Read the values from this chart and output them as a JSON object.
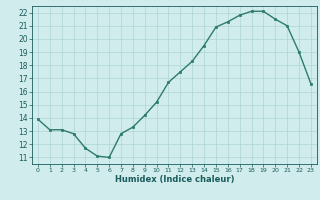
{
  "x": [
    0,
    1,
    2,
    3,
    4,
    5,
    6,
    7,
    8,
    9,
    10,
    11,
    12,
    13,
    14,
    15,
    16,
    17,
    18,
    19,
    20,
    21,
    22,
    23
  ],
  "y": [
    13.9,
    13.1,
    13.1,
    12.8,
    11.7,
    11.1,
    11.0,
    12.8,
    13.3,
    14.2,
    15.2,
    16.7,
    17.5,
    18.3,
    19.5,
    20.9,
    21.3,
    21.8,
    22.1,
    22.1,
    21.5,
    21.0,
    19.0,
    16.6
  ],
  "xlabel": "Humidex (Indice chaleur)",
  "ylabel": "",
  "xlim": [
    -0.5,
    23.5
  ],
  "ylim": [
    10.5,
    22.5
  ],
  "yticks": [
    11,
    12,
    13,
    14,
    15,
    16,
    17,
    18,
    19,
    20,
    21,
    22
  ],
  "xticks": [
    0,
    1,
    2,
    3,
    4,
    5,
    6,
    7,
    8,
    9,
    10,
    11,
    12,
    13,
    14,
    15,
    16,
    17,
    18,
    19,
    20,
    21,
    22,
    23
  ],
  "line_color": "#2d7b6b",
  "marker_color": "#2d7b6b",
  "bg_color": "#d0ecec",
  "grid_color": "#aed4d4",
  "label_color": "#1a5c5c",
  "tick_color": "#1a5c5c"
}
